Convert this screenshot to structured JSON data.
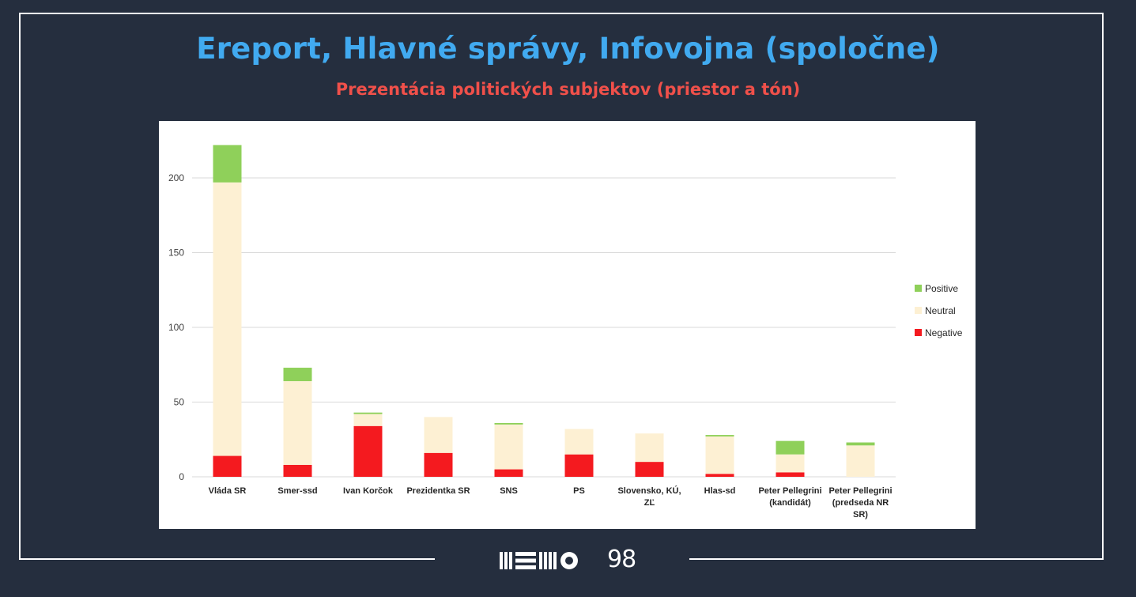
{
  "title": "Ereport, Hlavné správy, Infovojna (spoločne)",
  "subtitle": "Prezentácia politických subjektov (priestor a tón)",
  "logo": {
    "text": "98",
    "icon": "memo98-logo-icon"
  },
  "colors": {
    "background": "#252e3e",
    "title": "#41aaf0",
    "subtitle": "#f0504a",
    "positive": "#8fd05a",
    "neutral": "#fdf0d3",
    "negative": "#f41a1f",
    "grid": "#d9d9d9"
  },
  "chart_data": {
    "type": "bar",
    "stacked": true,
    "categories": [
      [
        "Vláda SR"
      ],
      [
        "Smer-ssd"
      ],
      [
        "Ivan Korčok"
      ],
      [
        "Prezidentka SR"
      ],
      [
        "SNS"
      ],
      [
        "PS"
      ],
      [
        "Slovensko, KÚ,",
        "ZĽ"
      ],
      [
        "Hlas-sd"
      ],
      [
        "Peter Pellegrini",
        "(kandidát)"
      ],
      [
        "Peter Pellegrini",
        "(predseda NR",
        "SR)"
      ]
    ],
    "series": [
      {
        "name": "Negative",
        "color": "#f41a1f",
        "values": [
          14,
          8,
          34,
          16,
          5,
          15,
          10,
          2,
          3,
          0
        ]
      },
      {
        "name": "Neutral",
        "color": "#fdf0d3",
        "values": [
          183,
          56,
          8,
          24,
          30,
          17,
          19,
          25,
          12,
          21
        ]
      },
      {
        "name": "Positive",
        "color": "#8fd05a",
        "values": [
          25,
          9,
          1,
          0,
          1,
          0,
          0,
          1,
          9,
          2
        ]
      }
    ],
    "legend_order": [
      "Positive",
      "Neutral",
      "Negative"
    ],
    "legend_position": "right",
    "yticks": [
      0,
      50,
      100,
      150,
      200
    ],
    "ylim": [
      0,
      225
    ],
    "grid": true
  }
}
